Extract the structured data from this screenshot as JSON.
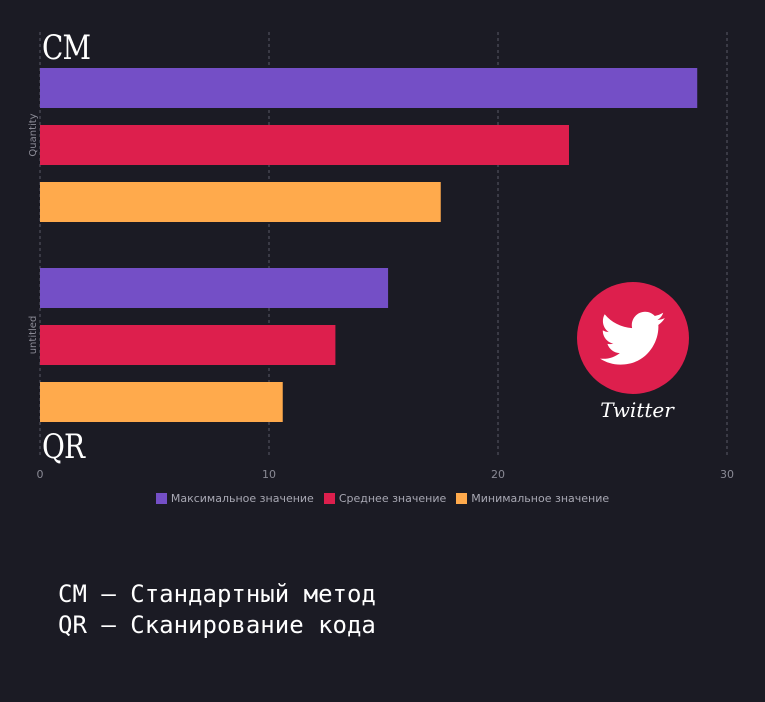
{
  "colors": {
    "background": "#1b1b24",
    "series_max": "#744fc6",
    "series_avg": "#dd1f4d",
    "series_min": "#ffaa4c",
    "grid": "#5a5a66",
    "tick": "#8a8a95"
  },
  "chart_data": {
    "type": "bar",
    "orientation": "horizontal",
    "categories": [
      "Quantity",
      "untitled"
    ],
    "group_labels": [
      "СМ",
      "QR"
    ],
    "series": [
      {
        "name": "Максимальное значение",
        "values": [
          28.7,
          15.2
        ]
      },
      {
        "name": "Среднее значение",
        "values": [
          23.1,
          12.9
        ]
      },
      {
        "name": "Минимальное значение",
        "values": [
          17.5,
          10.6
        ]
      }
    ],
    "xlim": [
      0,
      30
    ],
    "xticks": [
      "0",
      "10",
      "20",
      "30"
    ],
    "grid": true,
    "legend_position": "bottom"
  },
  "badge": {
    "icon": "twitter-bird-icon",
    "label": "Twitter"
  },
  "notes": [
    "СМ — Стандартный метод",
    "QR — Сканирование кода"
  ]
}
